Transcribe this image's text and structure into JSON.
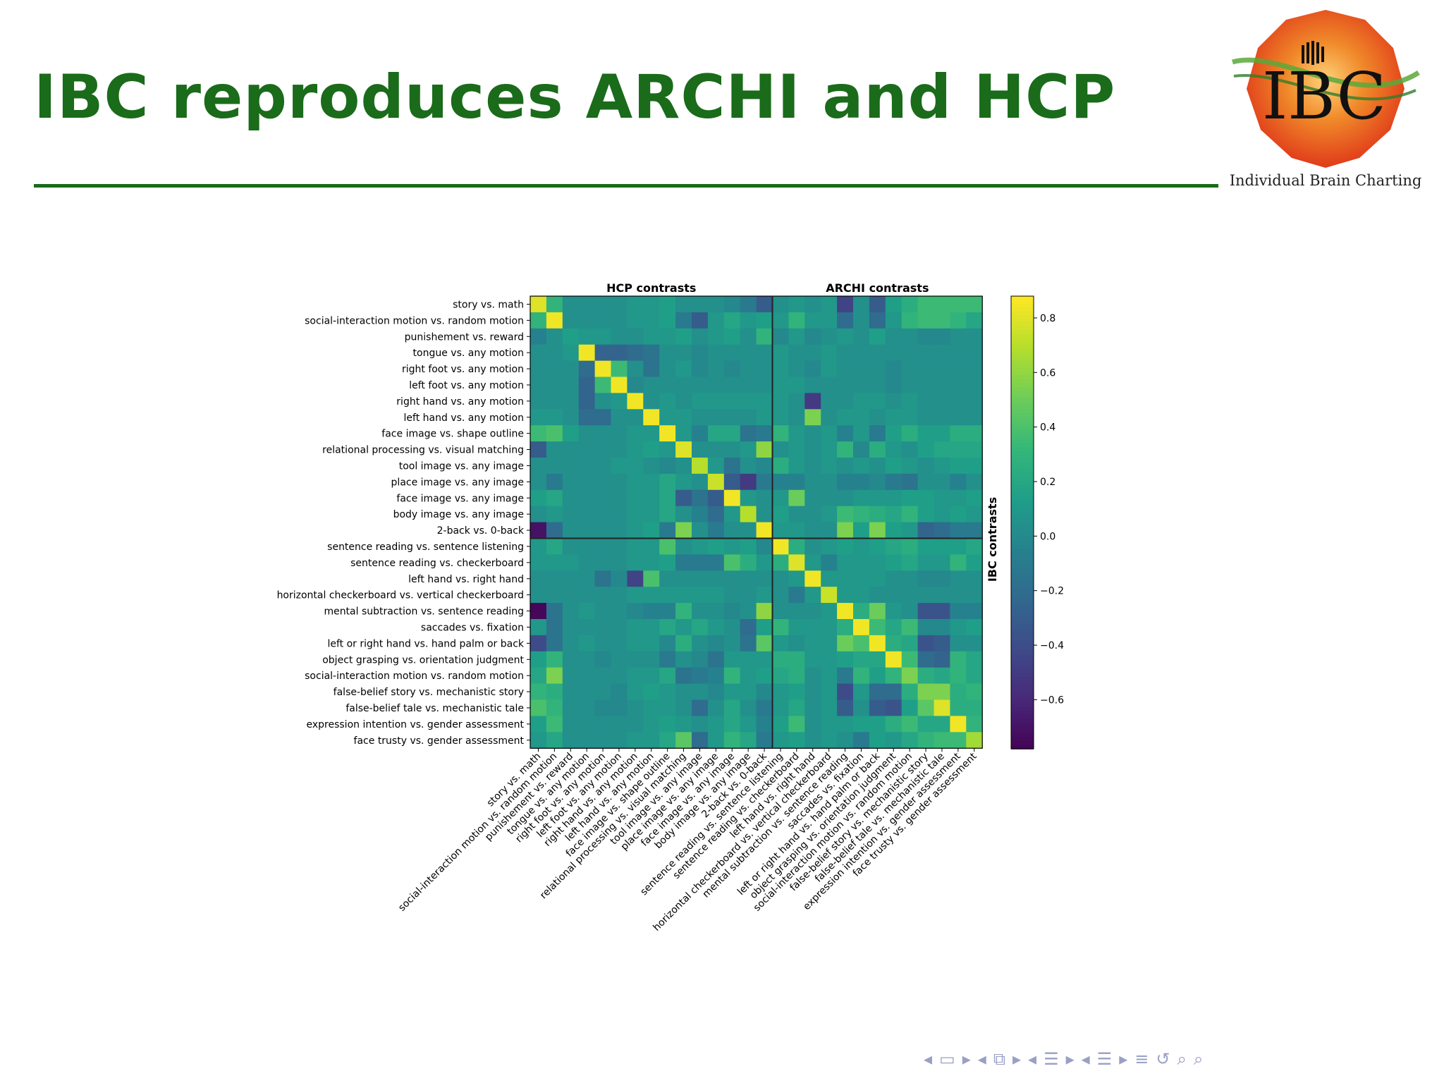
{
  "slide": {
    "title": "IBC reproduces ARCHI and HCP",
    "logo_letters": "IBC",
    "logo_caption": "Individual Brain Charting"
  },
  "colors": {
    "title_green": "#1a6b1a",
    "colormap": "viridis",
    "logo_primary": "#e8501e",
    "logo_secondary": "#f2b21b",
    "nav": "#9aa0c4"
  },
  "navigation": {
    "icons": [
      "triangle-left-icon",
      "frame-icon",
      "triangle-right-icon",
      "triangle-left-icon",
      "subsection-icon",
      "triangle-right-icon",
      "triangle-left-icon",
      "section-icon",
      "triangle-right-icon",
      "triangle-left-icon",
      "slide-list-icon",
      "triangle-right-icon",
      "align-icon",
      "undo-icon",
      "search-icon",
      "zoom-icon"
    ],
    "glyphs": [
      "◂",
      "▭",
      "▸",
      "◂",
      "⧉",
      "▸",
      "◂",
      "☰",
      "▸",
      "◂",
      "☰",
      "▸",
      "≡",
      "↺",
      "⌕",
      "⌕"
    ]
  },
  "chart_data": {
    "type": "heatmap",
    "title": "",
    "group_labels": [
      "HCP contrasts",
      "ARCHI contrasts"
    ],
    "ylabel_right": "IBC contrasts",
    "rows": [
      "story vs. math",
      "social-interaction motion vs. random motion",
      "punishement vs. reward",
      "tongue vs. any motion",
      "right foot vs. any motion",
      "left foot vs. any motion",
      "right hand vs. any motion",
      "left hand vs. any motion",
      "face image vs. shape outline",
      "relational processing vs. visual matching",
      "tool image vs. any image",
      "place image vs. any image",
      "face image vs. any image",
      "body image vs. any image",
      "2-back vs. 0-back",
      "sentence reading vs. sentence listening",
      "sentence reading vs. checkerboard",
      "left hand vs. right hand",
      "horizontal checkerboard vs. vertical checkerboard",
      "mental subtraction vs. sentence reading",
      "saccades vs. fixation",
      "left or right hand vs. hand palm or back",
      "object grasping vs. orientation judgment",
      "social-interaction motion vs. random motion",
      "false-belief story vs. mechanistic story",
      "false-belief tale vs. mechanistic tale",
      "expression intention vs. gender assessment",
      "face trusty vs. gender assessment"
    ],
    "columns": [
      "story vs. math",
      "social-interaction motion vs. random motion",
      "punishement vs. reward",
      "tongue vs. any motion",
      "right foot vs. any motion",
      "left foot vs. any motion",
      "right hand vs. any motion",
      "left hand vs. any motion",
      "face image vs. shape outline",
      "relational processing vs. visual matching",
      "tool image vs. any image",
      "place image vs. any image",
      "face image vs. any image",
      "body image vs. any image",
      "2-back vs. 0-back",
      "sentence reading vs. sentence listening",
      "sentence reading vs. checkerboard",
      "left hand vs. right hand",
      "horizontal checkerboard vs. vertical checkerboard",
      "mental subtraction vs. sentence reading",
      "saccades vs. fixation",
      "left or right hand vs. hand palm or back",
      "object grasping vs. orientation judgment",
      "social-interaction motion vs. random motion",
      "false-belief story vs. mechanistic story",
      "false-belief tale vs. mechanistic tale",
      "expression intention vs. gender assessment",
      "face trusty vs. gender assessment"
    ],
    "group_split_index": 15,
    "vmin": -0.78,
    "vmax": 0.88,
    "colorbar_ticks": [
      0.8,
      0.6,
      0.4,
      0.2,
      0.0,
      -0.2,
      -0.4,
      -0.6
    ],
    "colorbar_tick_labels": [
      "0.8",
      "0.6",
      "0.4",
      "0.2",
      "0.0",
      "−0.2",
      "−0.4",
      "−0.6"
    ],
    "values": [
      [
        0.8,
        0.3,
        0.05,
        0.05,
        0.05,
        0.05,
        0.1,
        0.1,
        0.15,
        0.05,
        0.05,
        0.05,
        0.0,
        -0.1,
        -0.3,
        0.05,
        0.1,
        0.05,
        0.1,
        -0.45,
        0.05,
        -0.3,
        0.15,
        0.25,
        0.35,
        0.35,
        0.35,
        0.35
      ],
      [
        0.3,
        0.85,
        0.05,
        0.05,
        0.05,
        0.05,
        0.1,
        0.1,
        0.15,
        -0.1,
        -0.3,
        0.1,
        0.2,
        0.1,
        0.15,
        0.1,
        0.3,
        0.1,
        0.1,
        -0.2,
        0.05,
        -0.2,
        0.1,
        0.3,
        0.35,
        0.35,
        0.3,
        0.2
      ],
      [
        -0.05,
        0.05,
        0.15,
        0.1,
        0.1,
        0.05,
        0.05,
        0.1,
        0.1,
        0.15,
        0.05,
        0.1,
        0.15,
        0.05,
        0.3,
        0.0,
        0.1,
        0.0,
        0.05,
        0.1,
        0.05,
        0.15,
        0.05,
        0.05,
        0.0,
        0.0,
        0.05,
        0.05
      ],
      [
        0.05,
        0.05,
        0.1,
        0.85,
        -0.25,
        -0.25,
        -0.2,
        -0.15,
        0.05,
        0.05,
        0.0,
        0.05,
        0.05,
        0.05,
        0.05,
        0.1,
        0.05,
        0.05,
        0.1,
        0.05,
        0.05,
        0.05,
        0.05,
        0.05,
        0.05,
        0.05,
        0.05,
        0.05
      ],
      [
        0.05,
        0.05,
        0.05,
        -0.2,
        0.85,
        0.35,
        0.05,
        -0.15,
        0.05,
        0.1,
        0.0,
        0.05,
        0.0,
        0.05,
        0.05,
        0.1,
        0.05,
        0.0,
        0.1,
        0.05,
        0.05,
        0.05,
        0.0,
        0.05,
        0.05,
        0.05,
        0.05,
        0.05
      ],
      [
        0.05,
        0.05,
        0.05,
        -0.25,
        0.35,
        0.85,
        0.0,
        0.05,
        0.05,
        0.05,
        0.05,
        0.05,
        0.05,
        0.05,
        0.05,
        0.1,
        0.1,
        0.05,
        0.05,
        0.05,
        0.05,
        0.05,
        0.0,
        0.05,
        0.05,
        0.05,
        0.05,
        0.05
      ],
      [
        0.05,
        0.05,
        0.05,
        -0.25,
        0.05,
        0.1,
        0.85,
        0.05,
        0.1,
        0.05,
        0.1,
        0.1,
        0.1,
        0.1,
        0.1,
        0.1,
        0.05,
        -0.5,
        0.05,
        0.05,
        0.1,
        0.1,
        0.05,
        0.1,
        0.05,
        0.05,
        0.05,
        0.05
      ],
      [
        0.1,
        0.1,
        0.05,
        -0.2,
        -0.2,
        0.05,
        0.05,
        0.85,
        0.1,
        0.1,
        0.05,
        0.05,
        0.05,
        0.05,
        0.1,
        0.1,
        0.05,
        0.55,
        0.05,
        0.1,
        0.1,
        0.05,
        0.1,
        0.1,
        0.05,
        0.05,
        0.05,
        0.05
      ],
      [
        0.35,
        0.4,
        0.15,
        0.05,
        0.05,
        0.05,
        0.1,
        0.1,
        0.85,
        0.1,
        -0.05,
        0.2,
        0.2,
        -0.15,
        -0.1,
        0.3,
        0.1,
        0.05,
        0.1,
        -0.05,
        0.1,
        -0.1,
        0.15,
        0.25,
        0.15,
        0.15,
        0.25,
        0.25
      ],
      [
        -0.3,
        0.05,
        0.05,
        0.05,
        0.05,
        0.05,
        0.1,
        0.15,
        0.1,
        0.8,
        0.05,
        0.05,
        0.05,
        0.1,
        0.6,
        0.05,
        0.1,
        0.05,
        0.1,
        0.3,
        0.0,
        0.25,
        0.1,
        0.05,
        0.15,
        0.2,
        0.2,
        0.2
      ],
      [
        0.05,
        0.05,
        0.05,
        0.05,
        0.05,
        0.1,
        0.1,
        0.05,
        0.0,
        0.05,
        0.7,
        0.1,
        -0.15,
        0.05,
        0.0,
        0.25,
        0.1,
        0.05,
        0.1,
        0.05,
        0.1,
        0.05,
        0.15,
        0.1,
        0.05,
        0.1,
        0.15,
        0.15
      ],
      [
        0.05,
        -0.1,
        0.05,
        0.05,
        0.05,
        0.05,
        0.1,
        0.1,
        0.2,
        0.1,
        0.05,
        0.75,
        -0.3,
        -0.5,
        -0.1,
        -0.05,
        -0.05,
        0.05,
        0.05,
        -0.05,
        -0.05,
        0.0,
        -0.1,
        -0.15,
        0.05,
        0.05,
        -0.05,
        0.05
      ],
      [
        0.15,
        0.2,
        0.05,
        0.05,
        0.05,
        0.05,
        0.1,
        0.1,
        0.2,
        -0.3,
        -0.15,
        -0.3,
        0.85,
        0.1,
        0.05,
        0.1,
        0.5,
        0.05,
        0.05,
        0.05,
        0.1,
        0.1,
        0.1,
        0.15,
        0.15,
        0.1,
        0.1,
        0.15
      ],
      [
        0.05,
        0.1,
        0.05,
        0.05,
        0.05,
        0.05,
        0.1,
        0.1,
        0.2,
        0.05,
        -0.05,
        -0.2,
        0.1,
        0.7,
        0.05,
        0.15,
        0.05,
        0.05,
        0.1,
        0.35,
        0.3,
        0.25,
        0.2,
        0.3,
        0.15,
        0.1,
        0.15,
        0.1
      ],
      [
        -0.7,
        -0.2,
        0.05,
        0.05,
        0.05,
        0.05,
        0.1,
        0.15,
        -0.1,
        0.55,
        0.05,
        -0.1,
        0.05,
        0.05,
        0.85,
        0.1,
        0.1,
        0.05,
        0.05,
        0.55,
        0.15,
        0.55,
        0.15,
        0.1,
        -0.25,
        -0.2,
        -0.1,
        -0.1
      ],
      [
        0.1,
        0.2,
        0.05,
        0.05,
        0.05,
        0.05,
        0.1,
        0.1,
        0.4,
        0.05,
        0.1,
        0.15,
        0.1,
        0.15,
        0.0,
        0.85,
        0.25,
        0.05,
        0.1,
        0.15,
        0.1,
        0.15,
        0.2,
        0.25,
        0.15,
        0.15,
        0.15,
        0.2
      ],
      [
        0.1,
        0.1,
        0.1,
        0.05,
        0.05,
        0.05,
        0.1,
        0.1,
        0.15,
        -0.1,
        -0.1,
        -0.1,
        0.4,
        0.25,
        0.1,
        0.25,
        0.8,
        0.1,
        -0.05,
        0.1,
        0.1,
        0.1,
        0.15,
        0.2,
        0.1,
        0.1,
        0.3,
        0.15
      ],
      [
        0.05,
        0.05,
        0.05,
        0.05,
        -0.15,
        0.0,
        -0.45,
        0.4,
        0.05,
        0.05,
        0.05,
        0.05,
        0.05,
        0.05,
        0.05,
        0.05,
        0.1,
        0.85,
        0.1,
        0.1,
        0.1,
        0.1,
        0.05,
        0.05,
        0.0,
        0.0,
        0.05,
        0.05
      ],
      [
        0.05,
        0.05,
        0.05,
        0.05,
        0.05,
        0.05,
        0.1,
        0.1,
        0.1,
        0.1,
        0.1,
        0.1,
        0.05,
        0.05,
        0.1,
        0.05,
        -0.1,
        0.1,
        0.75,
        0.1,
        0.1,
        0.05,
        0.05,
        0.05,
        0.05,
        0.05,
        0.05,
        0.05
      ],
      [
        -0.75,
        -0.15,
        0.05,
        0.1,
        0.05,
        0.05,
        0.0,
        -0.05,
        -0.05,
        0.3,
        0.05,
        0.05,
        0.0,
        0.05,
        0.6,
        0.05,
        0.05,
        0.05,
        0.1,
        0.85,
        0.25,
        0.5,
        0.1,
        0.05,
        -0.35,
        -0.35,
        -0.05,
        -0.05
      ],
      [
        0.1,
        -0.15,
        0.05,
        0.05,
        0.05,
        0.05,
        0.1,
        0.1,
        0.2,
        0.1,
        0.2,
        0.1,
        0.05,
        -0.2,
        0.15,
        0.3,
        0.1,
        0.1,
        0.1,
        0.25,
        0.85,
        0.35,
        0.2,
        0.35,
        0.0,
        0.0,
        0.1,
        0.15
      ],
      [
        -0.4,
        -0.15,
        0.05,
        0.1,
        0.05,
        0.05,
        0.1,
        0.1,
        0.0,
        0.25,
        0.05,
        0.0,
        0.05,
        -0.15,
        0.45,
        0.1,
        0.05,
        0.1,
        0.1,
        0.5,
        0.4,
        0.85,
        0.25,
        0.2,
        -0.35,
        -0.3,
        0.05,
        0.05
      ],
      [
        0.15,
        0.3,
        0.05,
        0.05,
        0.0,
        0.05,
        0.05,
        0.05,
        -0.1,
        0.05,
        0.0,
        -0.15,
        0.1,
        0.1,
        0.1,
        0.25,
        0.25,
        0.1,
        0.1,
        0.15,
        0.2,
        0.2,
        0.85,
        0.35,
        -0.2,
        -0.25,
        0.3,
        0.2
      ],
      [
        0.2,
        0.55,
        0.05,
        0.05,
        0.05,
        0.05,
        0.1,
        0.1,
        0.2,
        -0.15,
        -0.1,
        -0.05,
        0.3,
        0.1,
        0.15,
        0.2,
        0.25,
        0.05,
        0.1,
        -0.1,
        0.3,
        0.15,
        0.3,
        0.55,
        0.25,
        0.2,
        0.3,
        0.2
      ],
      [
        0.3,
        0.25,
        0.05,
        0.05,
        0.05,
        0.0,
        0.1,
        0.15,
        0.1,
        0.05,
        0.05,
        0.0,
        0.1,
        0.1,
        0.0,
        0.1,
        0.15,
        0.05,
        0.1,
        -0.4,
        0.1,
        -0.2,
        -0.2,
        0.25,
        0.55,
        0.55,
        0.25,
        0.3
      ],
      [
        0.4,
        0.3,
        0.05,
        0.05,
        0.0,
        0.0,
        0.05,
        0.1,
        0.1,
        0.05,
        -0.2,
        0.05,
        0.2,
        0.05,
        -0.1,
        0.1,
        0.2,
        0.05,
        0.1,
        -0.3,
        0.05,
        -0.3,
        -0.35,
        0.15,
        0.45,
        0.8,
        0.25,
        0.25
      ],
      [
        0.15,
        0.35,
        0.05,
        0.05,
        0.05,
        0.05,
        0.05,
        0.1,
        0.15,
        0.1,
        0.05,
        0.1,
        0.2,
        0.1,
        -0.05,
        0.15,
        0.35,
        0.05,
        0.1,
        0.1,
        0.15,
        0.15,
        0.25,
        0.35,
        0.2,
        0.2,
        0.85,
        0.3
      ],
      [
        0.1,
        0.2,
        0.05,
        0.05,
        0.05,
        0.05,
        0.1,
        0.1,
        0.2,
        0.45,
        -0.2,
        0.1,
        0.3,
        0.2,
        -0.1,
        0.1,
        0.15,
        0.05,
        0.1,
        0.05,
        -0.1,
        0.15,
        0.1,
        0.2,
        0.3,
        0.35,
        0.35,
        0.65
      ]
    ]
  }
}
